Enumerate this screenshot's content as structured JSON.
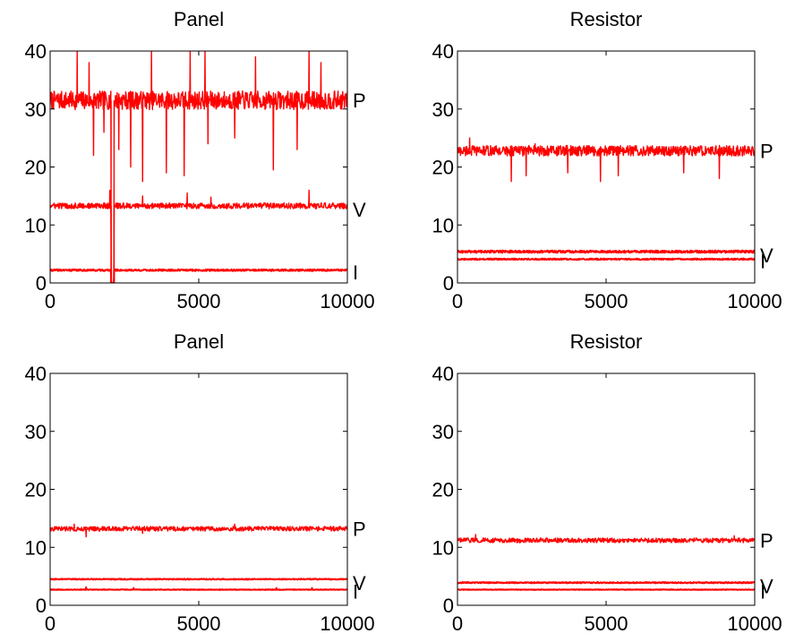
{
  "chart_data": [
    {
      "type": "line",
      "title": "Panel",
      "xlim": [
        0,
        10000
      ],
      "ylim": [
        0,
        40
      ],
      "xticks": [
        "0",
        "5000",
        "10000"
      ],
      "yticks": [
        "0",
        "10",
        "20",
        "30",
        "40"
      ],
      "color": "#ff0000",
      "series": [
        {
          "name": "P",
          "level": 31.5,
          "noise": 1.6,
          "spike_down": [
            [
              1450,
              22
            ],
            [
              1800,
              26
            ],
            [
              2300,
              23
            ],
            [
              2700,
              20
            ],
            [
              3100,
              17.5
            ],
            [
              3900,
              19
            ],
            [
              4500,
              18.5
            ],
            [
              5300,
              24
            ],
            [
              6200,
              25
            ],
            [
              7500,
              19.5
            ],
            [
              8300,
              23
            ]
          ],
          "spike_up": [
            [
              900,
              40
            ],
            [
              1300,
              38
            ],
            [
              3400,
              40
            ],
            [
              4700,
              40
            ],
            [
              5200,
              40
            ],
            [
              6900,
              39
            ],
            [
              8700,
              40
            ],
            [
              9100,
              38
            ]
          ],
          "dropout": [
            2050,
            2150
          ]
        },
        {
          "name": "V",
          "level": 13.3,
          "noise": 0.5,
          "spike_up": [
            [
              2000,
              16
            ],
            [
              3100,
              15
            ],
            [
              4600,
              15.5
            ],
            [
              5400,
              14.8
            ],
            [
              8700,
              16
            ]
          ],
          "dropout": [
            2050,
            2150
          ]
        },
        {
          "name": "I",
          "level": 2.2,
          "noise": 0.15,
          "dropout": [
            2050,
            2150
          ]
        }
      ]
    },
    {
      "type": "line",
      "title": "Resistor",
      "xlim": [
        0,
        10000
      ],
      "ylim": [
        0,
        40
      ],
      "xticks": [
        "0",
        "5000",
        "10000"
      ],
      "yticks": [
        "0",
        "10",
        "20",
        "30",
        "40"
      ],
      "color": "#ff0000",
      "series": [
        {
          "name": "P",
          "level": 22.8,
          "noise": 0.9,
          "spike_down": [
            [
              1800,
              17.5
            ],
            [
              2300,
              18.5
            ],
            [
              3700,
              19
            ],
            [
              4800,
              17.5
            ],
            [
              5400,
              18.5
            ],
            [
              7600,
              19
            ],
            [
              8800,
              18
            ]
          ],
          "spike_up": [
            [
              400,
              25
            ],
            [
              2600,
              24
            ]
          ]
        },
        {
          "name": "V",
          "level": 5.4,
          "noise": 0.2
        },
        {
          "name": "I",
          "level": 4.1,
          "noise": 0.12
        }
      ]
    },
    {
      "type": "line",
      "title": "Panel",
      "xlim": [
        0,
        10000
      ],
      "ylim": [
        0,
        40
      ],
      "xticks": [
        "0",
        "5000",
        "10000"
      ],
      "yticks": [
        "0",
        "10",
        "20",
        "30",
        "40"
      ],
      "color": "#ff0000",
      "series": [
        {
          "name": "P",
          "level": 13.2,
          "noise": 0.4,
          "spike_down": [
            [
              1200,
              11.8
            ],
            [
              3100,
              12.4
            ]
          ],
          "spike_up": [
            [
              800,
              14
            ],
            [
              6200,
              14
            ]
          ]
        },
        {
          "name": "V",
          "level": 4.5,
          "noise": 0.08
        },
        {
          "name": "I",
          "level": 2.7,
          "noise": 0.05,
          "spike_up": [
            [
              1200,
              3.1
            ],
            [
              2800,
              3.0
            ],
            [
              7600,
              3.0
            ],
            [
              8800,
              3.0
            ]
          ]
        }
      ]
    },
    {
      "type": "line",
      "title": "Resistor",
      "xlim": [
        0,
        10000
      ],
      "ylim": [
        0,
        40
      ],
      "xticks": [
        "0",
        "5000",
        "10000"
      ],
      "yticks": [
        "0",
        "10",
        "20",
        "30",
        "40"
      ],
      "color": "#ff0000",
      "series": [
        {
          "name": "P",
          "level": 11.2,
          "noise": 0.4,
          "spike_up": [
            [
              600,
              12.2
            ],
            [
              9300,
              12
            ]
          ]
        },
        {
          "name": "V",
          "level": 3.9,
          "noise": 0.1
        },
        {
          "name": "I",
          "level": 2.7,
          "noise": 0.05
        }
      ]
    }
  ]
}
